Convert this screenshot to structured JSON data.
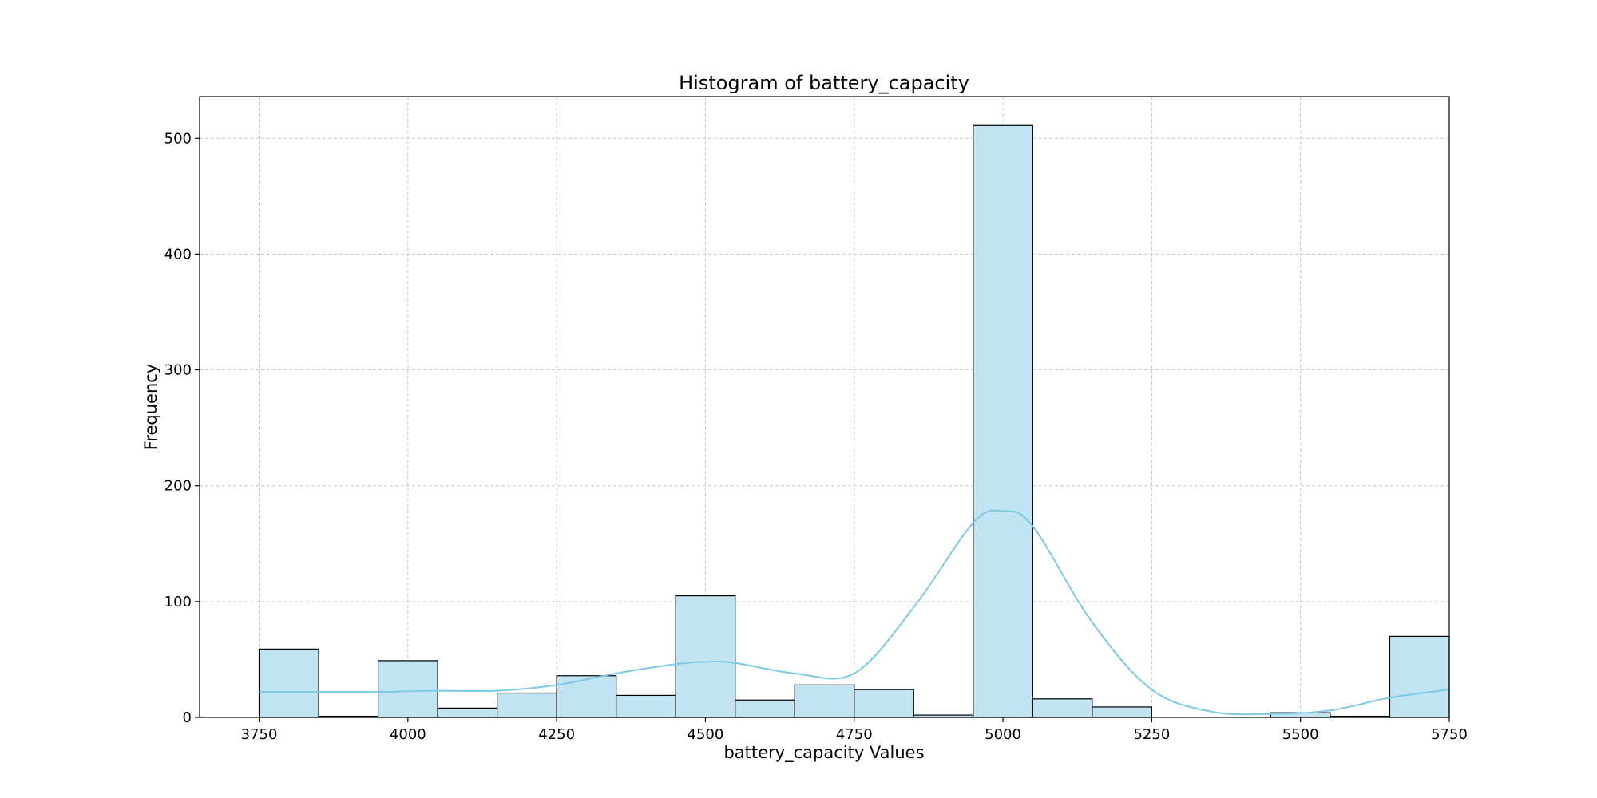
{
  "chart_data": {
    "type": "bar",
    "title": "Histogram of battery_capacity",
    "xlabel": "battery_capacity Values",
    "ylabel": "Frequency",
    "xlim": [
      3650,
      5750
    ],
    "ylim": [
      0,
      536
    ],
    "xticks": [
      3750,
      4000,
      4250,
      4500,
      4750,
      5000,
      5250,
      5500,
      5750
    ],
    "yticks": [
      0,
      100,
      200,
      300,
      400,
      500
    ],
    "grid": true,
    "bin_edges": [
      3750,
      3850,
      3950,
      4050,
      4150,
      4250,
      4350,
      4450,
      4550,
      4650,
      4750,
      4850,
      4950,
      5050,
      5150,
      5250,
      5350,
      5450,
      5550,
      5650,
      5750
    ],
    "values": [
      59,
      1,
      49,
      8,
      21,
      36,
      19,
      105,
      15,
      28,
      24,
      2,
      511,
      16,
      9,
      0,
      0,
      4,
      1,
      70
    ],
    "kde": {
      "x": [
        3750,
        3850,
        3950,
        4050,
        4150,
        4250,
        4350,
        4450,
        4500,
        4550,
        4650,
        4750,
        4850,
        4950,
        5000,
        5050,
        5150,
        5250,
        5350,
        5450,
        5550,
        5650,
        5750
      ],
      "y": [
        22,
        22,
        22,
        23,
        23,
        28,
        38,
        46,
        48,
        47,
        38,
        38,
        95,
        168,
        178,
        165,
        82,
        24,
        5,
        3,
        6,
        17,
        24
      ]
    },
    "colors": {
      "bar_fill": "#c1e4f2",
      "bar_edge": "#000000",
      "kde_line": "#7cc9e6",
      "grid": "#c8c8c8"
    }
  }
}
